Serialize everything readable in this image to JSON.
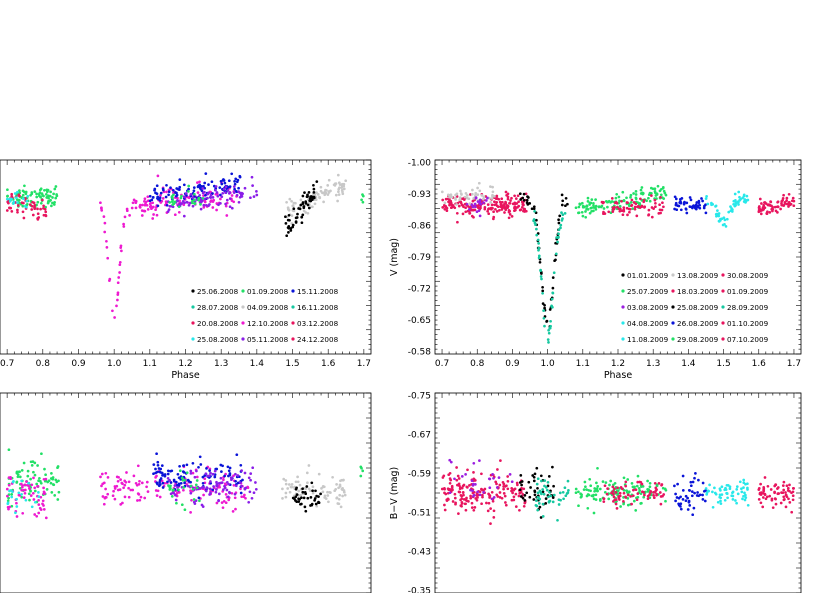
{
  "colors": {
    "black": "#000000",
    "green": "#22e066",
    "blue": "#0a14d8",
    "magenta": "#ee1ad0",
    "crimson": "#e8155e",
    "purple": "#8a1ee8",
    "cyan": "#28e8ea",
    "teal": "#16c8a0",
    "gray": "#c8c8c8",
    "violet": "#9b1fe0"
  },
  "chart_data": [
    {
      "id": "top-left",
      "type": "scatter",
      "xlabel": "Phase",
      "ylabel": "",
      "xlim": [
        0.68,
        1.72
      ],
      "ylim": [
        -0.56,
        -1.02
      ],
      "xticks": [
        "0.7",
        "0.8",
        "0.9",
        "1.0",
        "1.1",
        "1.2",
        "1.3",
        "1.4",
        "1.5",
        "1.6",
        "1.7"
      ],
      "yticks": [],
      "legend": {
        "placement": "bottom-right",
        "entries": [
          {
            "label": "25.06.2008",
            "color": "black"
          },
          {
            "label": "01.09.2008",
            "color": "green"
          },
          {
            "label": "15.11.2008",
            "color": "blue"
          },
          {
            "label": "28.07.2008",
            "color": "teal"
          },
          {
            "label": "04.09.2008",
            "color": "gray"
          },
          {
            "label": "16.11.2008",
            "color": "teal"
          },
          {
            "label": "20.08.2008",
            "color": "crimson"
          },
          {
            "label": "12.10.2008",
            "color": "magenta"
          },
          {
            "label": "03.12.2008",
            "color": "crimson"
          },
          {
            "label": "25.08.2008",
            "color": "cyan"
          },
          {
            "label": "05.11.2008",
            "color": "purple"
          },
          {
            "label": "24.12.2008",
            "color": "crimson"
          }
        ]
      },
      "segments": [
        {
          "color": "green",
          "shape": "flat",
          "x": [
            0.7,
            0.84
          ],
          "y": -0.93,
          "n": 90,
          "s": 0.012
        },
        {
          "color": "crimson",
          "shape": "ramp",
          "x": [
            0.7,
            0.81
          ],
          "y": [
            -0.93,
            -0.89
          ],
          "n": 50,
          "s": 0.014
        },
        {
          "color": "cyan",
          "shape": "flat",
          "x": [
            0.7,
            0.76
          ],
          "y": -0.925,
          "n": 15,
          "s": 0.01
        },
        {
          "color": "magenta",
          "shape": "dip",
          "x": [
            0.96,
            1.12
          ],
          "min": -0.645,
          "center": 1.0,
          "width": 0.02,
          "base": -0.91,
          "n": 70,
          "s": 0.01
        },
        {
          "color": "magenta",
          "shape": "flat",
          "x": [
            1.12,
            1.35
          ],
          "y": -0.93,
          "n": 80,
          "s": 0.015
        },
        {
          "color": "blue",
          "shape": "ramp",
          "x": [
            1.1,
            1.36
          ],
          "y": [
            -0.935,
            -0.965
          ],
          "n": 110,
          "s": 0.012
        },
        {
          "color": "purple",
          "shape": "ramp",
          "x": [
            1.15,
            1.4
          ],
          "y": [
            -0.915,
            -0.945
          ],
          "n": 90,
          "s": 0.014
        },
        {
          "color": "green",
          "shape": "flat",
          "x": [
            1.15,
            1.25
          ],
          "y": -0.93,
          "n": 25,
          "s": 0.01
        },
        {
          "color": "gray",
          "shape": "ramp",
          "x": [
            1.48,
            1.65
          ],
          "y": [
            -0.9,
            -0.96
          ],
          "n": 90,
          "s": 0.012
        },
        {
          "color": "black",
          "shape": "ramp",
          "x": [
            1.48,
            1.57
          ],
          "y": [
            -0.86,
            -0.95
          ],
          "n": 55,
          "s": 0.014
        },
        {
          "color": "green",
          "shape": "flat",
          "x": [
            1.69,
            1.7
          ],
          "y": -0.93,
          "n": 4,
          "s": 0.006
        }
      ]
    },
    {
      "id": "top-right",
      "type": "scatter",
      "xlabel": "Phase",
      "ylabel": "V (mag)",
      "xlim": [
        0.68,
        1.72
      ],
      "ylim": [
        -0.575,
        -1.005
      ],
      "xticks": [
        "0.7",
        "0.8",
        "0.9",
        "1.0",
        "1.1",
        "1.2",
        "1.3",
        "1.4",
        "1.5",
        "1.6",
        "1.7"
      ],
      "yticks": [
        "-1.00",
        "-0.93",
        "-0.86",
        "-0.79",
        "-0.72",
        "-0.65",
        "-0.58"
      ],
      "legend": {
        "placement": "bottom-right",
        "entries": [
          {
            "label": "01.01.2009",
            "color": "black"
          },
          {
            "label": "13.08.2009",
            "color": "gray"
          },
          {
            "label": "30.08.2009",
            "color": "crimson"
          },
          {
            "label": "25.07.2009",
            "color": "green"
          },
          {
            "label": "18.03.2009",
            "color": "crimson"
          },
          {
            "label": "01.09.2009",
            "color": "crimson"
          },
          {
            "label": "03.08.2009",
            "color": "violet"
          },
          {
            "label": "25.08.2009",
            "color": "black"
          },
          {
            "label": "28.09.2009",
            "color": "teal"
          },
          {
            "label": "04.08.2009",
            "color": "cyan"
          },
          {
            "label": "26.08.2009",
            "color": "blue"
          },
          {
            "label": "01.10.2009",
            "color": "crimson"
          },
          {
            "label": "11.08.2009",
            "color": "cyan"
          },
          {
            "label": "29.08.2009",
            "color": "green"
          },
          {
            "label": "07.10.2009",
            "color": "crimson"
          }
        ]
      },
      "segments": [
        {
          "color": "crimson",
          "shape": "flat",
          "x": [
            0.7,
            0.94
          ],
          "y": -0.905,
          "n": 200,
          "s": 0.012
        },
        {
          "color": "gray",
          "shape": "flat",
          "x": [
            0.7,
            0.85
          ],
          "y": -0.925,
          "n": 50,
          "s": 0.01
        },
        {
          "color": "violet",
          "shape": "flat",
          "x": [
            0.77,
            0.83
          ],
          "y": -0.905,
          "n": 20,
          "s": 0.01
        },
        {
          "color": "black",
          "shape": "dip",
          "x": [
            0.92,
            1.06
          ],
          "min": -0.64,
          "center": 1.0,
          "width": 0.025,
          "base": -0.92,
          "n": 60,
          "s": 0.01
        },
        {
          "color": "teal",
          "shape": "dip",
          "x": [
            0.96,
            1.05
          ],
          "min": -0.61,
          "center": 1.0,
          "width": 0.022,
          "base": -0.89,
          "n": 50,
          "s": 0.01
        },
        {
          "color": "green",
          "shape": "ramp",
          "x": [
            1.08,
            1.34
          ],
          "y": [
            -0.895,
            -0.935
          ],
          "n": 130,
          "s": 0.01
        },
        {
          "color": "crimson",
          "shape": "flat",
          "x": [
            1.15,
            1.33
          ],
          "y": -0.9,
          "n": 70,
          "s": 0.01
        },
        {
          "color": "blue",
          "shape": "flat",
          "x": [
            1.36,
            1.45
          ],
          "y": -0.905,
          "n": 50,
          "s": 0.008
        },
        {
          "color": "cyan",
          "shape": "dip",
          "x": [
            1.45,
            1.57
          ],
          "min": -0.87,
          "center": 1.5,
          "width": 0.025,
          "base": -0.92,
          "n": 60,
          "s": 0.007
        },
        {
          "color": "crimson",
          "shape": "ramp",
          "x": [
            1.6,
            1.7
          ],
          "y": [
            -0.895,
            -0.915
          ],
          "n": 70,
          "s": 0.008
        }
      ]
    },
    {
      "id": "bottom-left",
      "type": "scatter",
      "xlabel": "",
      "ylabel": "",
      "xlim": [
        0.68,
        1.72
      ],
      "ylim": [
        -0.35,
        -0.75
      ],
      "xticks": [],
      "yticks": [],
      "legend": null,
      "segments": [
        {
          "color": "green",
          "shape": "flat",
          "x": [
            0.7,
            0.85
          ],
          "y": -0.57,
          "n": 80,
          "s": 0.02
        },
        {
          "color": "magenta",
          "shape": "flat",
          "x": [
            0.7,
            0.81
          ],
          "y": -0.55,
          "n": 60,
          "s": 0.025
        },
        {
          "color": "cyan",
          "shape": "flat",
          "x": [
            0.7,
            0.79
          ],
          "y": -0.55,
          "n": 20,
          "s": 0.02
        },
        {
          "color": "magenta",
          "shape": "flat",
          "x": [
            0.96,
            1.38
          ],
          "y": -0.56,
          "n": 150,
          "s": 0.018
        },
        {
          "color": "blue",
          "shape": "flat",
          "x": [
            1.11,
            1.36
          ],
          "y": -0.585,
          "n": 110,
          "s": 0.018
        },
        {
          "color": "purple",
          "shape": "flat",
          "x": [
            1.15,
            1.4
          ],
          "y": -0.565,
          "n": 90,
          "s": 0.02
        },
        {
          "color": "green",
          "shape": "flat",
          "x": [
            1.15,
            1.24
          ],
          "y": -0.56,
          "n": 25,
          "s": 0.02
        },
        {
          "color": "gray",
          "shape": "flat",
          "x": [
            1.47,
            1.65
          ],
          "y": -0.56,
          "n": 80,
          "s": 0.015
        },
        {
          "color": "black",
          "shape": "flat",
          "x": [
            1.5,
            1.58
          ],
          "y": -0.545,
          "n": 40,
          "s": 0.012
        },
        {
          "color": "green",
          "shape": "flat",
          "x": [
            1.69,
            1.7
          ],
          "y": -0.6,
          "n": 4,
          "s": 0.01
        }
      ]
    },
    {
      "id": "bottom-right",
      "type": "scatter",
      "xlabel": "",
      "ylabel": "B−V (mag)",
      "xlim": [
        0.68,
        1.72
      ],
      "ylim": [
        -0.345,
        -0.755
      ],
      "xticks": [],
      "yticks": [
        "-0.75",
        "-0.67",
        "-0.59",
        "-0.51",
        "-0.43",
        "-0.35"
      ],
      "legend": null,
      "segments": [
        {
          "color": "crimson",
          "shape": "flat",
          "x": [
            0.7,
            0.94
          ],
          "y": -0.55,
          "n": 180,
          "s": 0.02
        },
        {
          "color": "violet",
          "shape": "flat",
          "x": [
            0.72,
            0.9
          ],
          "y": -0.57,
          "n": 30,
          "s": 0.025
        },
        {
          "color": "black",
          "shape": "flat",
          "x": [
            0.92,
            1.02
          ],
          "y": -0.55,
          "n": 45,
          "s": 0.02
        },
        {
          "color": "teal",
          "shape": "flat",
          "x": [
            0.96,
            1.06
          ],
          "y": -0.545,
          "n": 45,
          "s": 0.018
        },
        {
          "color": "green",
          "shape": "flat",
          "x": [
            1.08,
            1.34
          ],
          "y": -0.55,
          "n": 130,
          "s": 0.015
        },
        {
          "color": "crimson",
          "shape": "flat",
          "x": [
            1.15,
            1.33
          ],
          "y": -0.55,
          "n": 70,
          "s": 0.015
        },
        {
          "color": "blue",
          "shape": "flat",
          "x": [
            1.36,
            1.45
          ],
          "y": -0.545,
          "n": 45,
          "s": 0.015
        },
        {
          "color": "cyan",
          "shape": "flat",
          "x": [
            1.45,
            1.57
          ],
          "y": -0.55,
          "n": 60,
          "s": 0.012
        },
        {
          "color": "crimson",
          "shape": "flat",
          "x": [
            1.6,
            1.7
          ],
          "y": -0.55,
          "n": 70,
          "s": 0.015
        }
      ]
    }
  ]
}
